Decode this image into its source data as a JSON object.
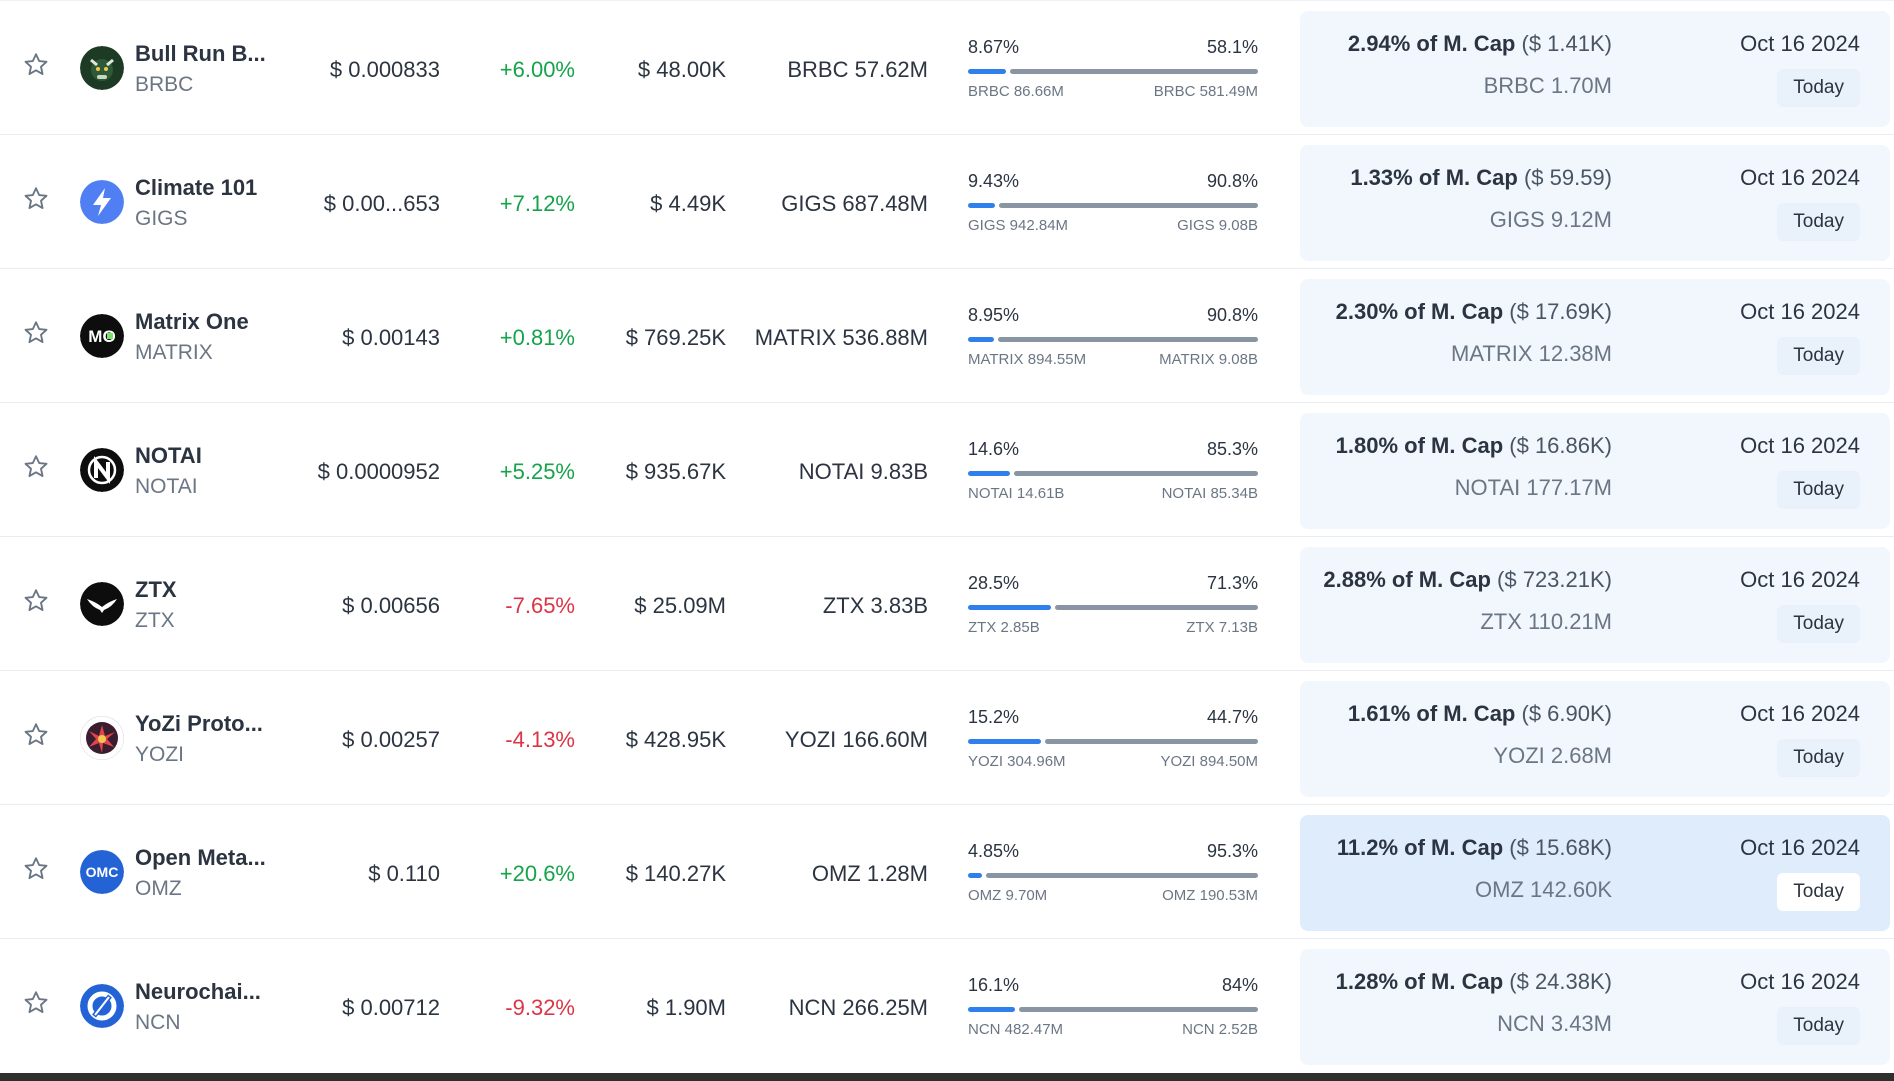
{
  "rows": [
    {
      "name": "Bull Run B...",
      "symbol": "BRBC",
      "price": "$ 0.000833",
      "change": "+6.00%",
      "direction": "up",
      "volume": "$ 48.00K",
      "supply": "BRBC 57.62M",
      "dist_left_pct": "8.67%",
      "dist_right_pct": "58.1%",
      "dist_left_amt": "BRBC 86.66M",
      "dist_right_amt": "BRBC 581.49M",
      "bar_fraction": 0.13,
      "unlock_pct": "2.94% of M. Cap",
      "unlock_value": "($ 1.41K)",
      "unlock_amount": "BRBC 1.70M",
      "date": "Oct 16 2024",
      "today": "Today",
      "logo_icon": "bull-logo-icon",
      "logo_color": "#1d3b24"
    },
    {
      "name": "Climate 101",
      "symbol": "GIGS",
      "price": "$ 0.00...653",
      "change": "+7.12%",
      "direction": "up",
      "volume": "$ 4.49K",
      "supply": "GIGS 687.48M",
      "dist_left_pct": "9.43%",
      "dist_right_pct": "90.8%",
      "dist_left_amt": "GIGS 942.84M",
      "dist_right_amt": "GIGS 9.08B",
      "bar_fraction": 0.094,
      "unlock_pct": "1.33% of M. Cap",
      "unlock_value": "($ 59.59)",
      "unlock_amount": "GIGS 9.12M",
      "date": "Oct 16 2024",
      "today": "Today",
      "logo_icon": "lightning-logo-icon",
      "logo_color": "#4f7ff2"
    },
    {
      "name": "Matrix One",
      "symbol": "MATRIX",
      "price": "$ 0.00143",
      "change": "+0.81%",
      "direction": "up",
      "volume": "$ 769.25K",
      "supply": "MATRIX 536.88M",
      "dist_left_pct": "8.95%",
      "dist_right_pct": "90.8%",
      "dist_left_amt": "MATRIX 894.55M",
      "dist_right_amt": "MATRIX 9.08B",
      "bar_fraction": 0.09,
      "unlock_pct": "2.30% of M. Cap",
      "unlock_value": "($ 17.69K)",
      "unlock_amount": "MATRIX 12.38M",
      "date": "Oct 16 2024",
      "today": "Today",
      "logo_icon": "mo-logo-icon",
      "logo_color": "#0d0d0d"
    },
    {
      "name": "NOTAI",
      "symbol": "NOTAI",
      "price": "$ 0.0000952",
      "change": "+5.25%",
      "direction": "up",
      "volume": "$ 935.67K",
      "supply": "NOTAI 9.83B",
      "dist_left_pct": "14.6%",
      "dist_right_pct": "85.3%",
      "dist_left_amt": "NOTAI 14.61B",
      "dist_right_amt": "NOTAI 85.34B",
      "bar_fraction": 0.146,
      "unlock_pct": "1.80% of M. Cap",
      "unlock_value": "($ 16.86K)",
      "unlock_amount": "NOTAI 177.17M",
      "date": "Oct 16 2024",
      "today": "Today",
      "logo_icon": "n-logo-icon",
      "logo_color": "#0d0d0d"
    },
    {
      "name": "ZTX",
      "symbol": "ZTX",
      "price": "$ 0.00656",
      "change": "-7.65%",
      "direction": "down",
      "volume": "$ 25.09M",
      "supply": "ZTX 3.83B",
      "dist_left_pct": "28.5%",
      "dist_right_pct": "71.3%",
      "dist_left_amt": "ZTX 2.85B",
      "dist_right_amt": "ZTX 7.13B",
      "bar_fraction": 0.285,
      "unlock_pct": "2.88% of M. Cap",
      "unlock_value": "($ 723.21K)",
      "unlock_amount": "ZTX 110.21M",
      "date": "Oct 16 2024",
      "today": "Today",
      "logo_icon": "bird-logo-icon",
      "logo_color": "#0d0d0d"
    },
    {
      "name": "YoZi Proto...",
      "symbol": "YOZI",
      "price": "$ 0.00257",
      "change": "-4.13%",
      "direction": "down",
      "volume": "$ 428.95K",
      "supply": "YOZI 166.60M",
      "dist_left_pct": "15.2%",
      "dist_right_pct": "44.7%",
      "dist_left_amt": "YOZI 304.96M",
      "dist_right_amt": "YOZI 894.50M",
      "bar_fraction": 0.25,
      "unlock_pct": "1.61% of M. Cap",
      "unlock_value": "($ 6.90K)",
      "unlock_amount": "YOZI 2.68M",
      "date": "Oct 16 2024",
      "today": "Today",
      "logo_icon": "flower-logo-icon",
      "logo_color": "#3a1e2f"
    },
    {
      "name": "Open Meta...",
      "symbol": "OMZ",
      "price": "$ 0.110",
      "change": "+20.6%",
      "direction": "up",
      "volume": "$ 140.27K",
      "supply": "OMZ 1.28M",
      "dist_left_pct": "4.85%",
      "dist_right_pct": "95.3%",
      "dist_left_amt": "OMZ 9.70M",
      "dist_right_amt": "OMZ 190.53M",
      "bar_fraction": 0.048,
      "unlock_pct": "11.2% of M. Cap",
      "unlock_value": "($ 15.68K)",
      "unlock_amount": "OMZ 142.60K",
      "date": "Oct 16 2024",
      "today": "Today",
      "logo_icon": "omc-logo-icon",
      "logo_color": "#2463d6",
      "highlight": true
    },
    {
      "name": "Neurochai...",
      "symbol": "NCN",
      "price": "$ 0.00712",
      "change": "-9.32%",
      "direction": "down",
      "volume": "$ 1.90M",
      "supply": "NCN 266.25M",
      "dist_left_pct": "16.1%",
      "dist_right_pct": "84%",
      "dist_left_amt": "NCN 482.47M",
      "dist_right_amt": "NCN 2.52B",
      "bar_fraction": 0.161,
      "unlock_pct": "1.28% of M. Cap",
      "unlock_value": "($ 24.38K)",
      "unlock_amount": "NCN 3.43M",
      "date": "Oct 16 2024",
      "today": "Today",
      "logo_icon": "ring-logo-icon",
      "logo_color": "#2463d6"
    }
  ],
  "colors": {
    "up": "#16a34a",
    "down": "#dc3545",
    "bar_accent": "#2f80ed",
    "bar_rest": "#8a95a3",
    "highlight_bg": "#deecfc",
    "unlock_bg": "#f2f7fd"
  }
}
